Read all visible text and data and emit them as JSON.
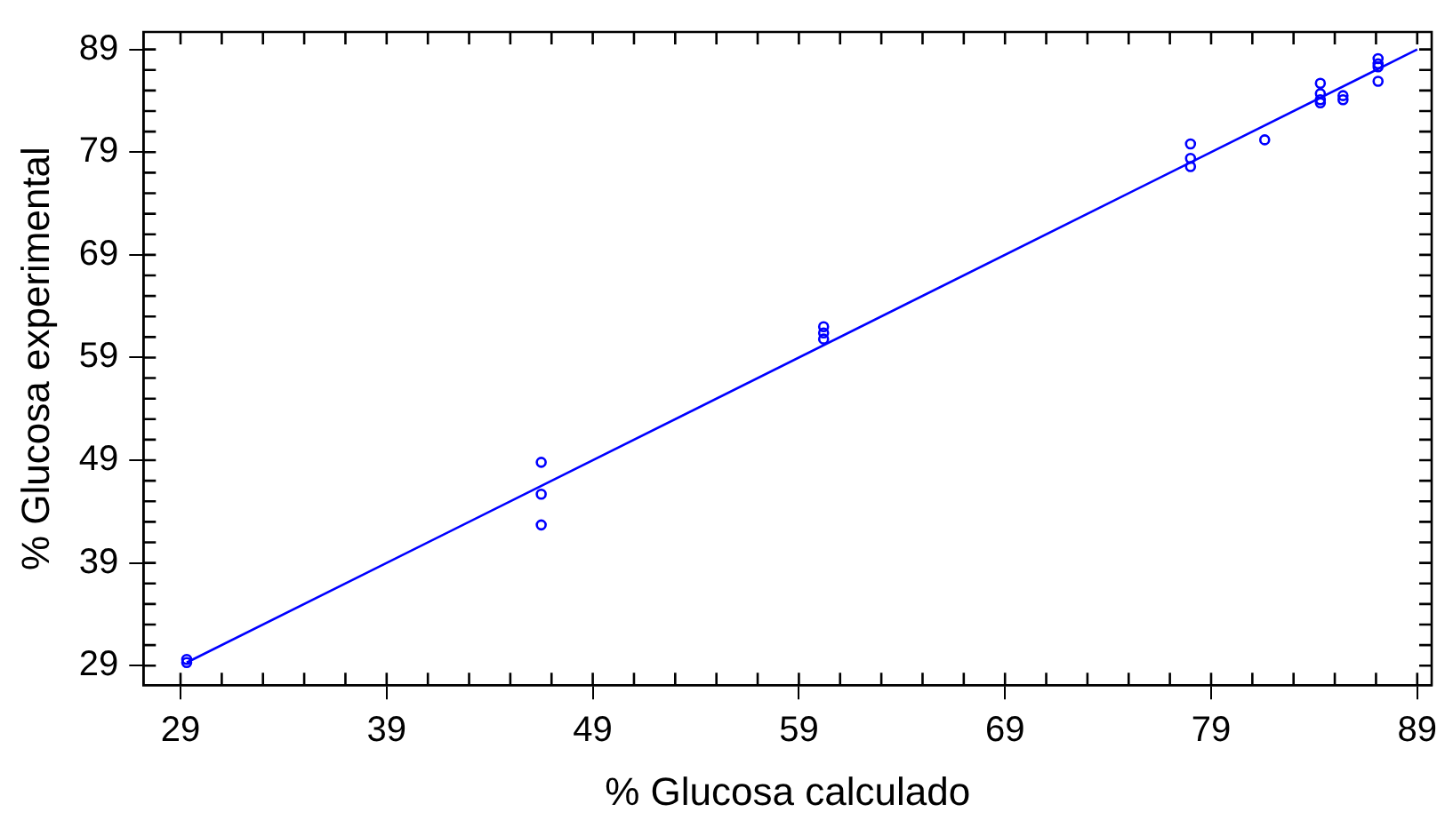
{
  "chart_data": {
    "type": "scatter",
    "xlabel": "% Glucosa calculado",
    "ylabel": "% Glucosa experimental",
    "xlim": [
      27.2,
      89.7
    ],
    "ylim": [
      27.1,
      90.7
    ],
    "xticks": [
      29,
      39,
      49,
      59,
      69,
      79,
      89
    ],
    "yticks": [
      29,
      39,
      49,
      59,
      69,
      79,
      89
    ],
    "grid": false,
    "legend": false,
    "marker": "circle",
    "series": [
      {
        "color": "#0000ff",
        "x": [
          29.3,
          29.3,
          46.5,
          46.5,
          46.5,
          60.2,
          60.2,
          60.2,
          78.0,
          78.0,
          78.0,
          81.6,
          84.3,
          84.3,
          84.3,
          84.3,
          85.4,
          85.4,
          87.1,
          87.1,
          87.1,
          87.1
        ],
        "values": [
          29.6,
          29.3,
          48.8,
          45.7,
          42.7,
          62.0,
          61.4,
          60.8,
          79.8,
          78.4,
          77.6,
          80.2,
          85.7,
          84.7,
          84.1,
          83.8,
          84.5,
          84.1,
          88.1,
          87.6,
          87.3,
          85.9
        ]
      },
      {
        "type": "line",
        "color": "#0000ff",
        "x": [
          29.3,
          89
        ],
        "values": [
          29.3,
          89
        ],
        "marker": "none",
        "line_style": "solid"
      }
    ]
  }
}
